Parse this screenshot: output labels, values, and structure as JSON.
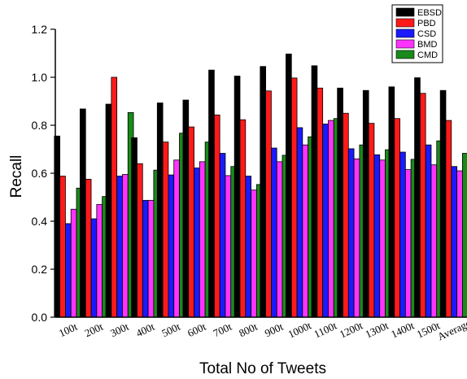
{
  "chart_data": {
    "type": "bar",
    "xlabel": "Total No of Tweets",
    "ylabel": "Recall",
    "ylim": [
      0.0,
      1.2
    ],
    "yticks": [
      "0.0",
      "0.2",
      "0.4",
      "0.6",
      "0.8",
      "1.0",
      "1.2"
    ],
    "grid": false,
    "legend_position": "top-right",
    "categories": [
      "100t",
      "200t",
      "300t",
      "400t",
      "500t",
      "600t",
      "700t",
      "800t",
      "900t",
      "1000t",
      "1100t",
      "1200t",
      "1300t",
      "1400t",
      "1500t",
      "Average"
    ],
    "series": [
      {
        "name": "EBSD",
        "color": "#000000",
        "values": [
          0.755,
          0.868,
          0.888,
          0.748,
          0.893,
          0.905,
          1.03,
          1.005,
          1.045,
          1.097,
          1.048,
          0.955,
          0.945,
          0.96,
          0.998,
          0.945
        ]
      },
      {
        "name": "PBD",
        "color": "#ff1a1a",
        "values": [
          0.588,
          0.575,
          1.0,
          0.64,
          0.73,
          0.793,
          0.843,
          0.823,
          0.943,
          0.997,
          0.955,
          0.85,
          0.808,
          0.828,
          0.933,
          0.82
        ]
      },
      {
        "name": "CSD",
        "color": "#1a1aff",
        "values": [
          0.39,
          0.41,
          0.588,
          0.487,
          0.593,
          0.622,
          0.683,
          0.588,
          0.705,
          0.79,
          0.805,
          0.702,
          0.677,
          0.688,
          0.718,
          0.628
        ]
      },
      {
        "name": "BMD",
        "color": "#ff33ff",
        "values": [
          0.45,
          0.47,
          0.595,
          0.487,
          0.655,
          0.648,
          0.59,
          0.53,
          0.648,
          0.718,
          0.82,
          0.66,
          0.655,
          0.615,
          0.635,
          0.61
        ]
      },
      {
        "name": "CMD",
        "color": "#1a8a1a",
        "values": [
          0.538,
          0.503,
          0.853,
          0.613,
          0.767,
          0.73,
          0.628,
          0.553,
          0.675,
          0.752,
          0.828,
          0.718,
          0.698,
          0.658,
          0.735,
          0.683
        ]
      }
    ]
  }
}
